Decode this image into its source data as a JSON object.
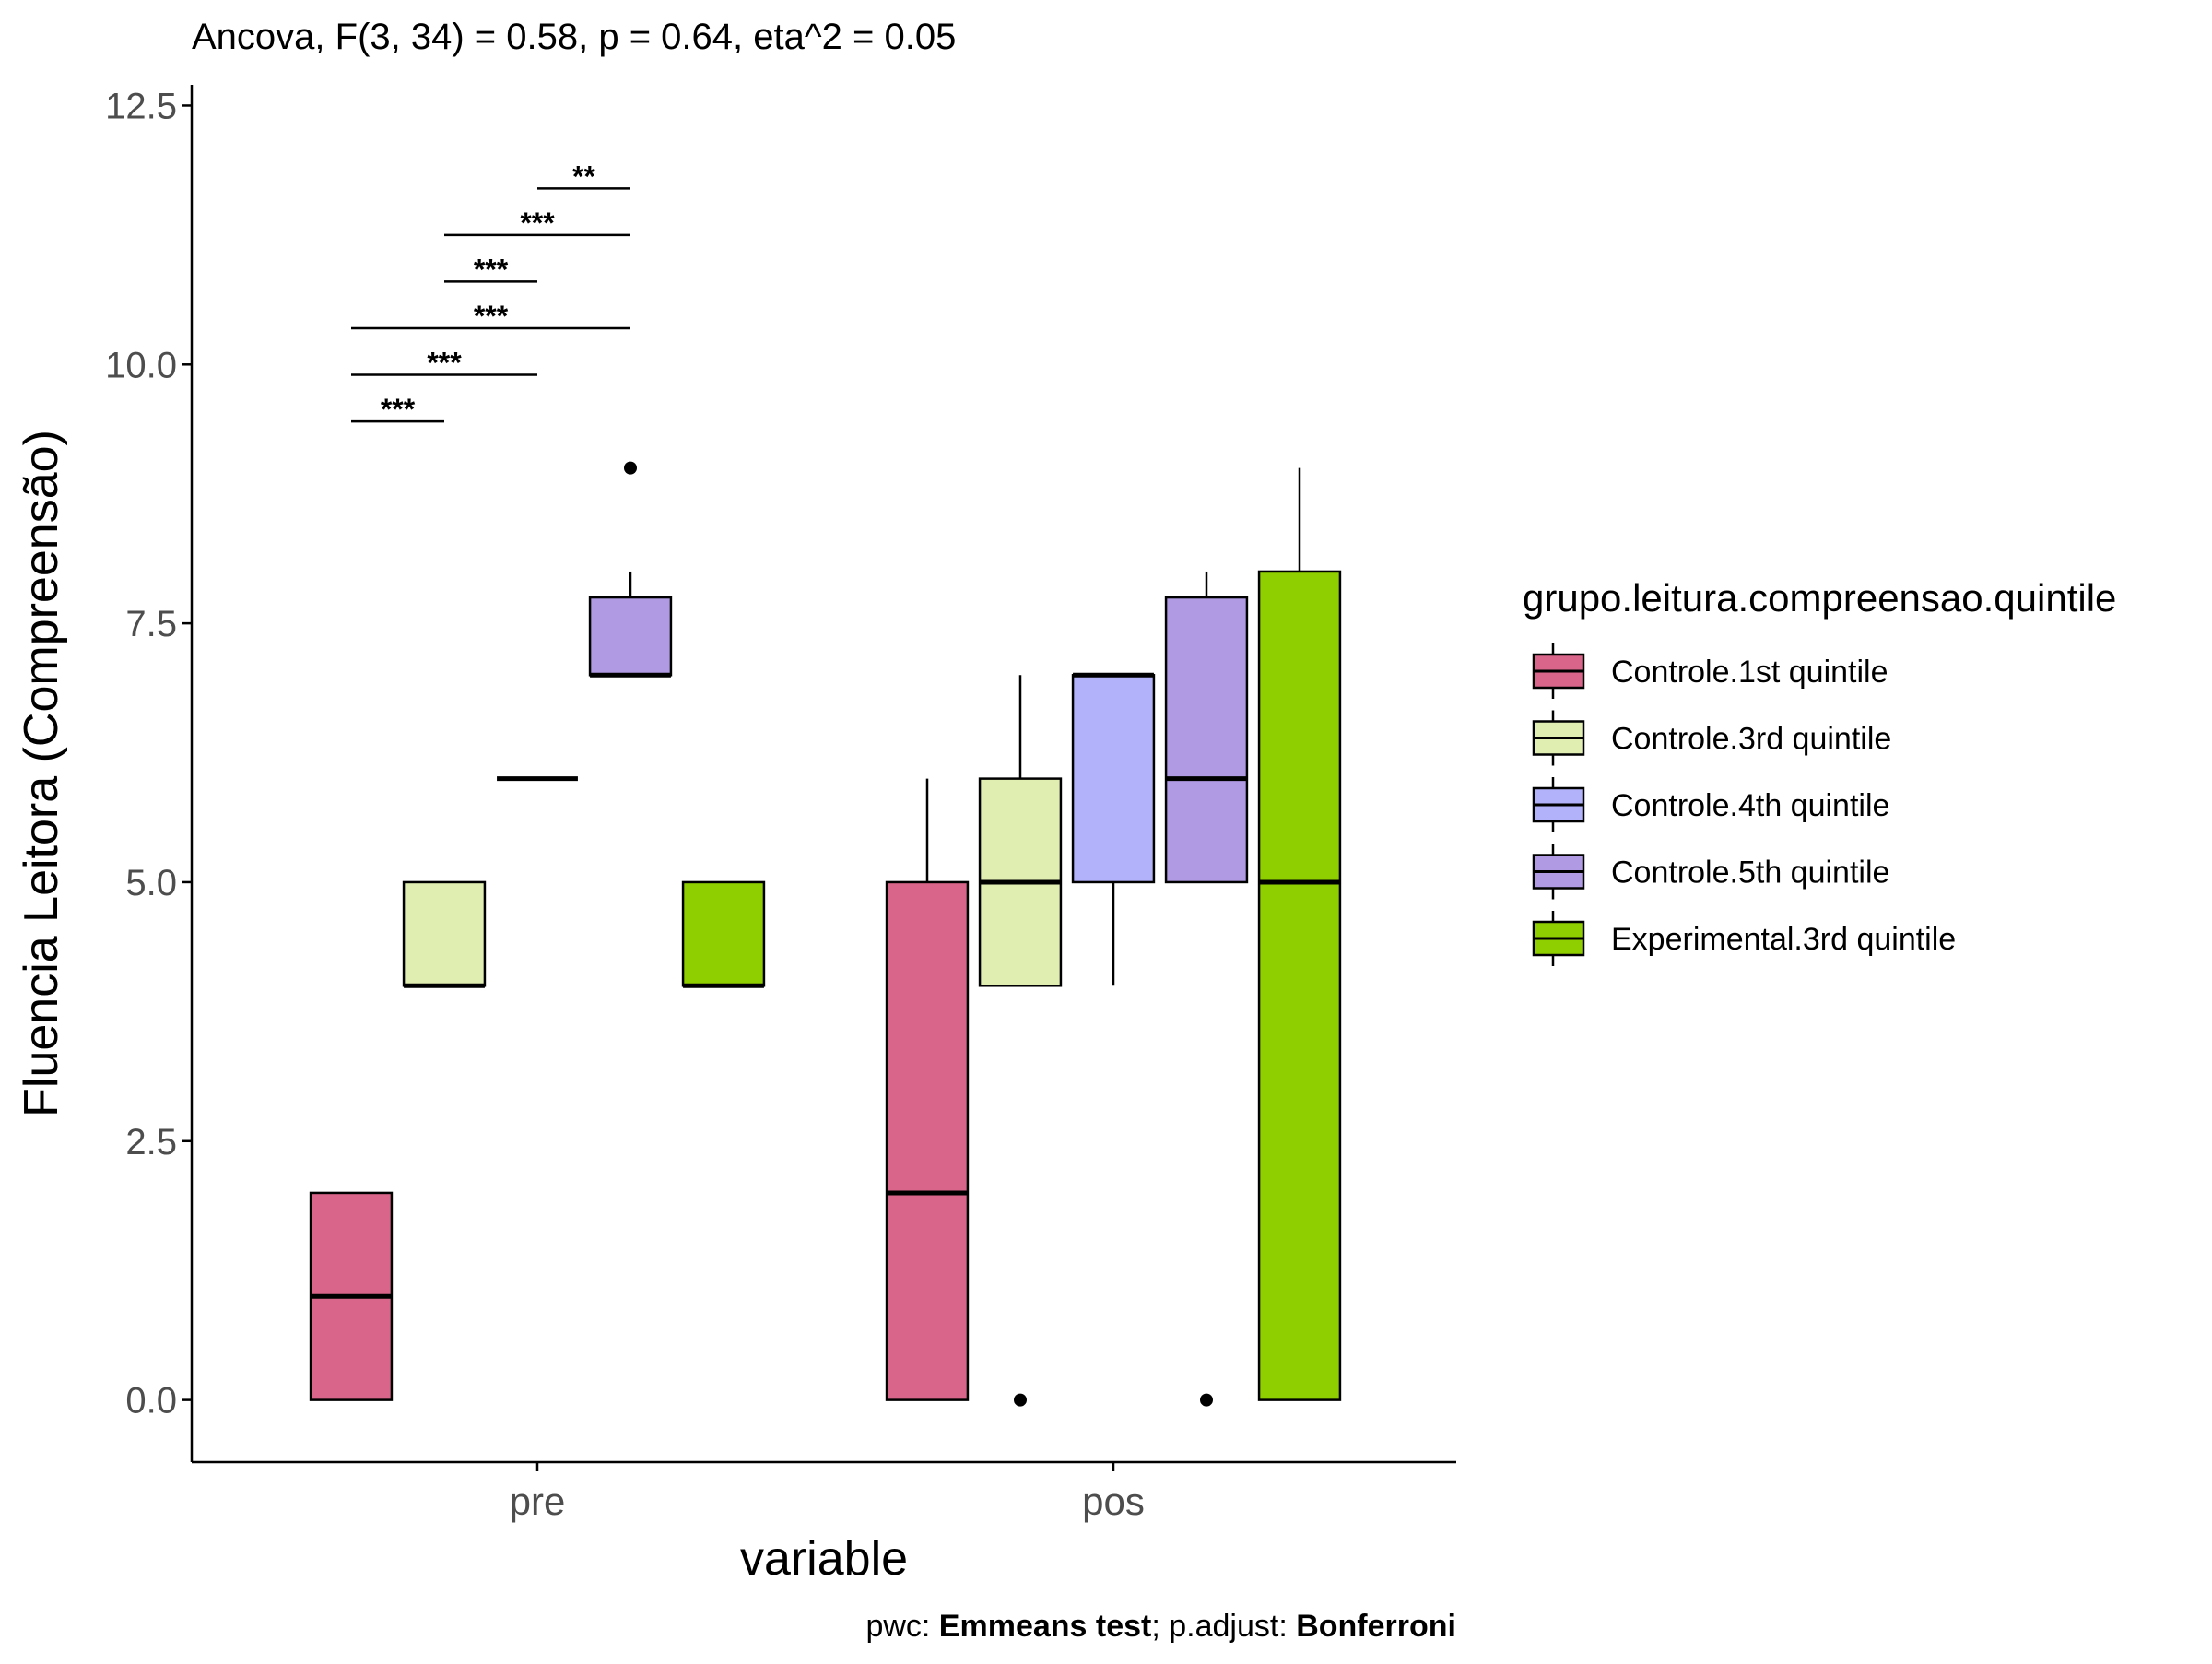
{
  "chart_data": {
    "type": "boxplot",
    "title": "Ancova, F(3, 34) = 0.58, p = 0.64, eta^2 = 0.05",
    "xlabel": "variable",
    "ylabel": "Fluencia Leitora (Compreensão)",
    "caption": {
      "parts": [
        {
          "text": "pwc: ",
          "bold": false
        },
        {
          "text": "Emmeans test",
          "bold": true
        },
        {
          "text": "; p.adjust: ",
          "bold": false
        },
        {
          "text": "Bonferroni",
          "bold": true
        }
      ]
    },
    "categories": [
      "pre",
      "pos"
    ],
    "ylim": [
      -0.6,
      12.7
    ],
    "yticks": [
      {
        "value": 0,
        "label": "0.0"
      },
      {
        "value": 2.5,
        "label": "2.5"
      },
      {
        "value": 5,
        "label": "5.0"
      },
      {
        "value": 7.5,
        "label": "7.5"
      },
      {
        "value": 10,
        "label": "10.0"
      },
      {
        "value": 12.5,
        "label": "12.5"
      }
    ],
    "grid": false,
    "legend": {
      "title": "grupo.leitura.compreensao.quintile",
      "position": "right"
    },
    "series": [
      {
        "name": "Controle.1st quintile",
        "color": "#D9668A",
        "boxes": [
          {
            "category": "pre",
            "whisker_low": 0,
            "q1": 0,
            "median": 1,
            "q3": 2,
            "whisker_high": 2,
            "outliers": []
          },
          {
            "category": "pos",
            "whisker_low": 0,
            "q1": 0,
            "median": 2,
            "q3": 5,
            "whisker_high": 6,
            "outliers": []
          }
        ]
      },
      {
        "name": "Controle.3rd quintile",
        "color": "#E0EEB1",
        "boxes": [
          {
            "category": "pre",
            "whisker_low": 4,
            "q1": 4,
            "median": 4,
            "q3": 5,
            "whisker_high": 5,
            "outliers": []
          },
          {
            "category": "pos",
            "whisker_low": 4,
            "q1": 4,
            "median": 5,
            "q3": 6,
            "whisker_high": 7,
            "outliers": [
              0
            ]
          }
        ]
      },
      {
        "name": "Controle.4th quintile",
        "color": "#B2B2FB",
        "boxes": [
          {
            "category": "pre",
            "whisker_low": 6,
            "q1": 6,
            "median": 6,
            "q3": 6,
            "whisker_high": 6,
            "outliers": []
          },
          {
            "category": "pos",
            "whisker_low": 4,
            "q1": 5,
            "median": 7,
            "q3": 7,
            "whisker_high": 7,
            "outliers": []
          }
        ]
      },
      {
        "name": "Controle.5th quintile",
        "color": "#B09AE3",
        "boxes": [
          {
            "category": "pre",
            "whisker_low": 7,
            "q1": 7,
            "median": 7,
            "q3": 7.75,
            "whisker_high": 8,
            "outliers": [
              9
            ]
          },
          {
            "category": "pos",
            "whisker_low": 5,
            "q1": 5,
            "median": 6,
            "q3": 7.75,
            "whisker_high": 8,
            "outliers": [
              0
            ]
          }
        ]
      },
      {
        "name": "Experimental.3rd quintile",
        "color": "#8FCF00",
        "boxes": [
          {
            "category": "pre",
            "whisker_low": 4,
            "q1": 4,
            "median": 4,
            "q3": 5,
            "whisker_high": 5,
            "outliers": []
          },
          {
            "category": "pos",
            "whisker_low": 0,
            "q1": 0,
            "median": 5,
            "q3": 8,
            "whisker_high": 9,
            "outliers": []
          }
        ]
      }
    ],
    "significance": [
      {
        "category": "pre",
        "from": 0,
        "to": 1,
        "y": 9.45,
        "label": "***"
      },
      {
        "category": "pre",
        "from": 0,
        "to": 2,
        "y": 9.9,
        "label": "***"
      },
      {
        "category": "pre",
        "from": 0,
        "to": 3,
        "y": 10.35,
        "label": "***"
      },
      {
        "category": "pre",
        "from": 1,
        "to": 2,
        "y": 10.8,
        "label": "***"
      },
      {
        "category": "pre",
        "from": 1,
        "to": 3,
        "y": 11.25,
        "label": "***"
      },
      {
        "category": "pre",
        "from": 2,
        "to": 3,
        "y": 11.7,
        "label": "**"
      }
    ]
  }
}
